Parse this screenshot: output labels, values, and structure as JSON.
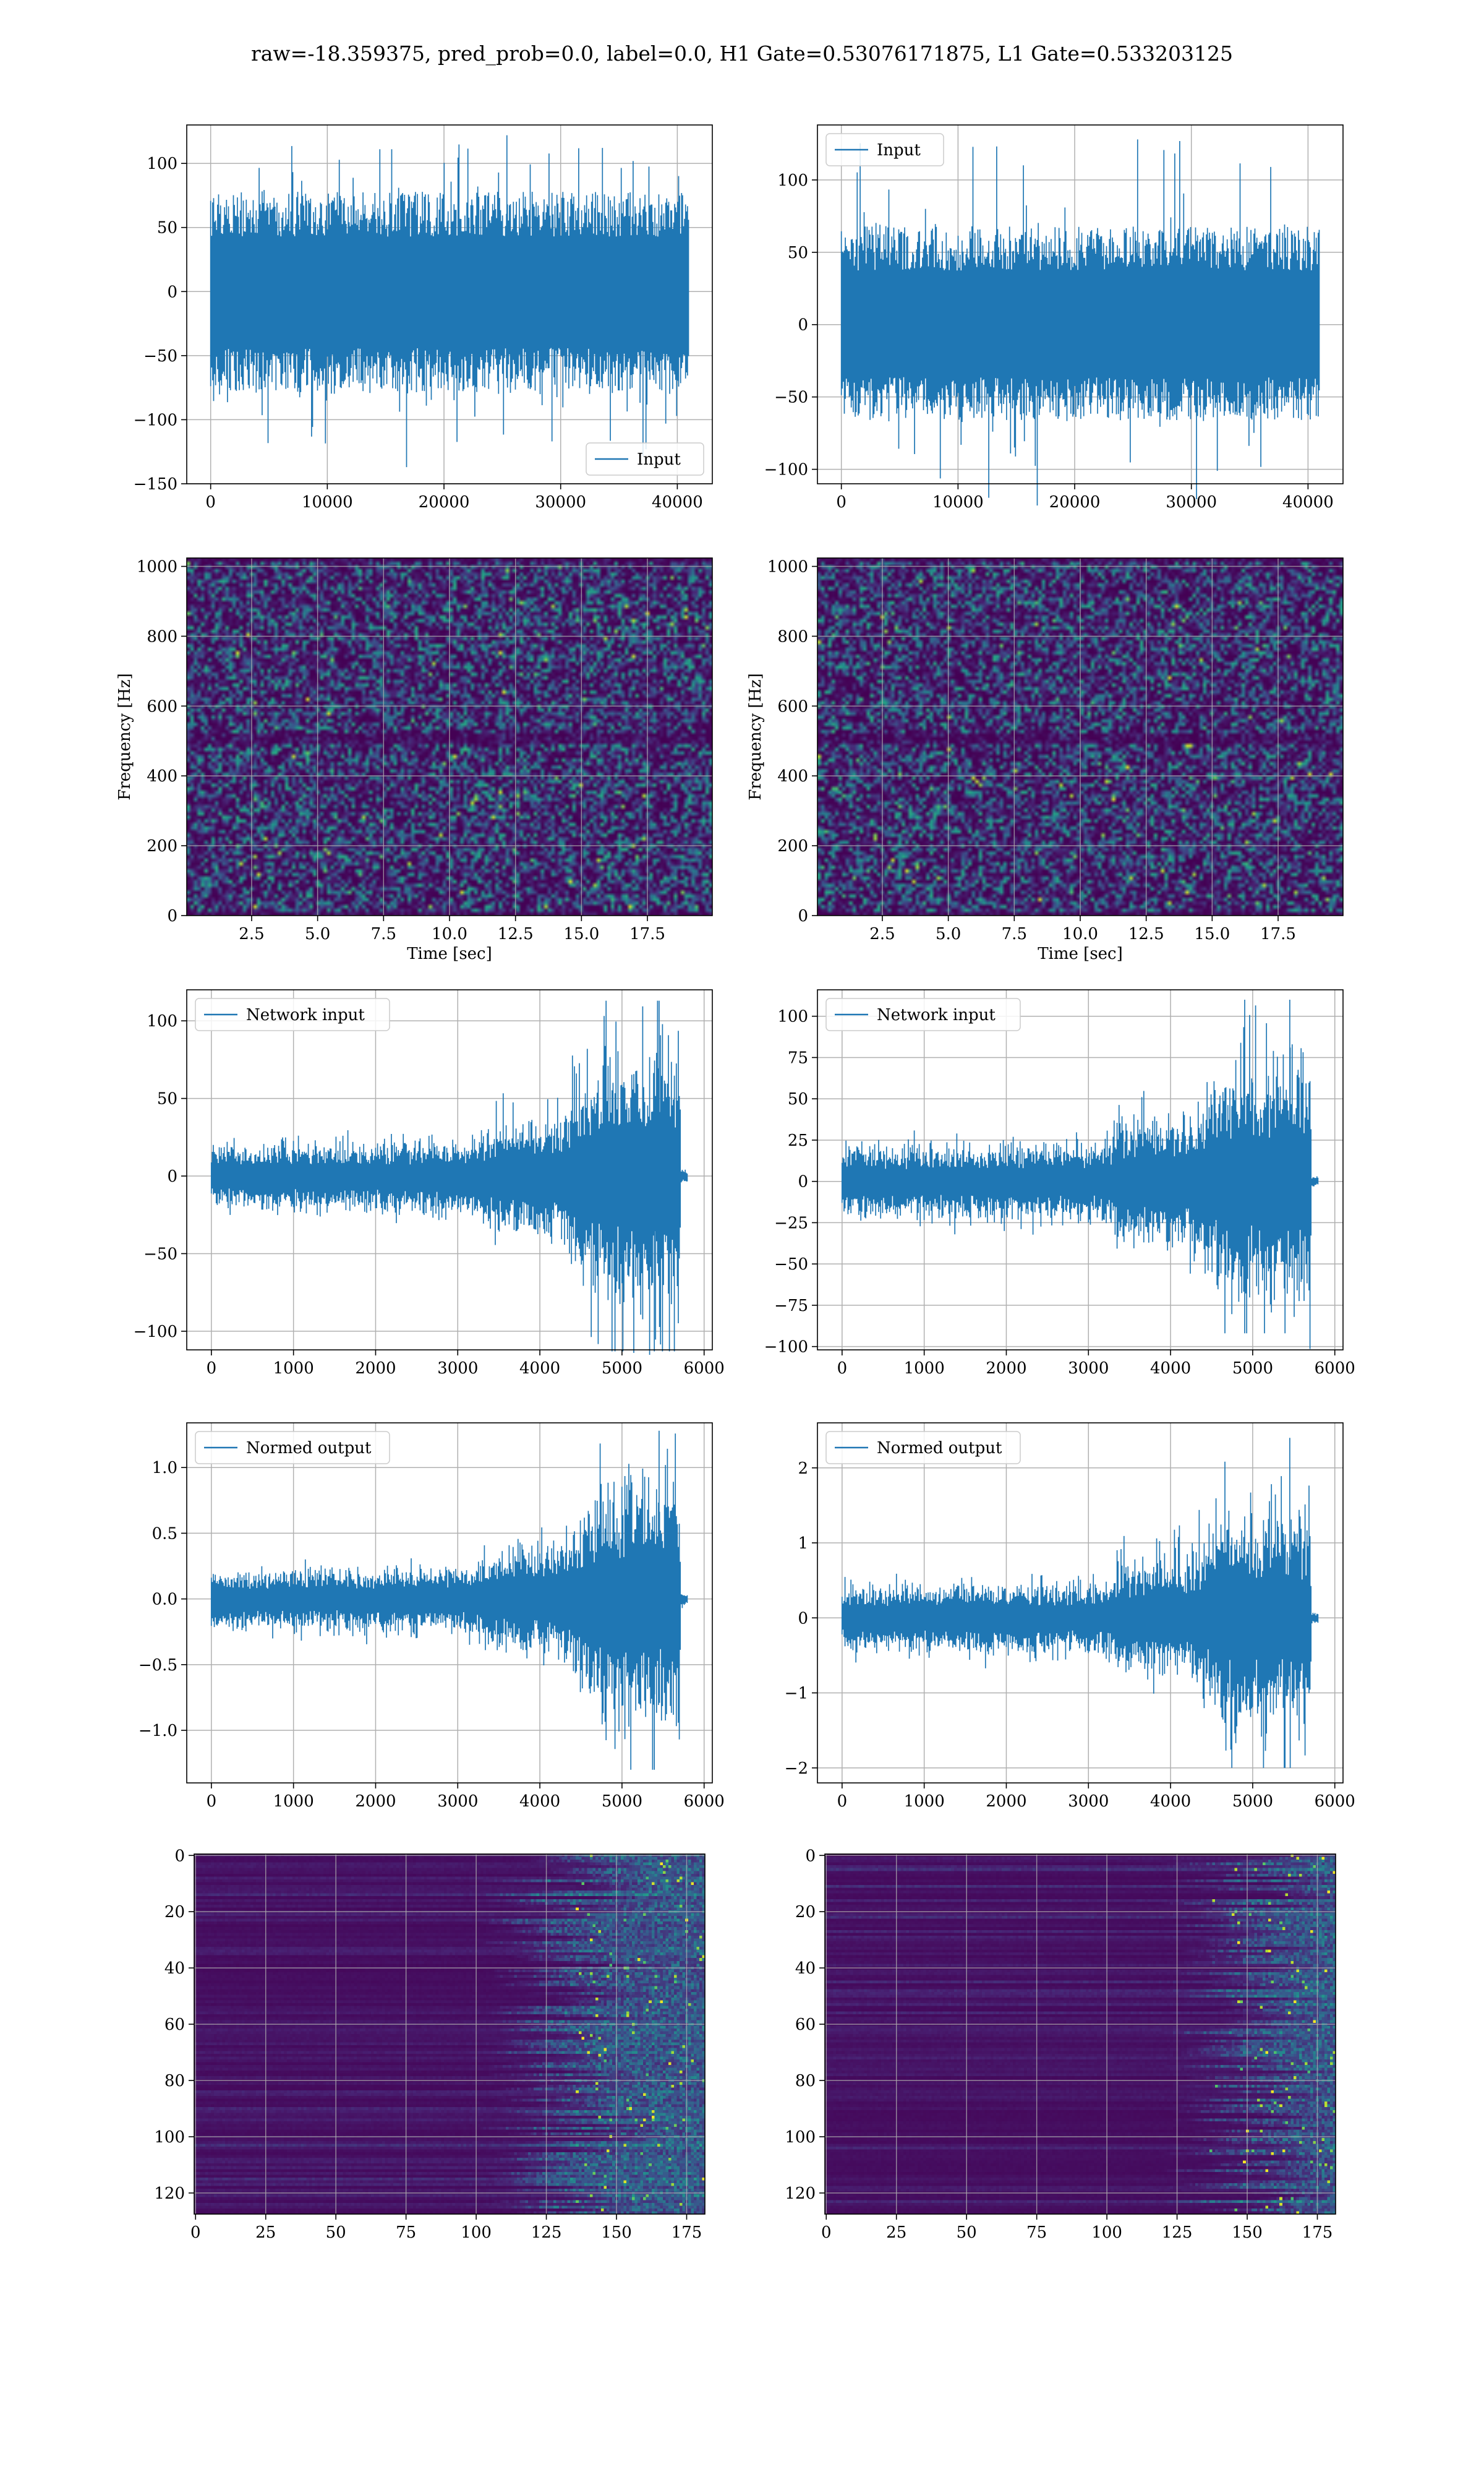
{
  "figure": {
    "suptitle": "raw=-18.359375, pred_prob=0.0, label=0.0, H1 Gate=0.53076171875, L1 Gate=0.533203125"
  },
  "colors": {
    "line": "#1f77b4",
    "grid": "#b0b0b0",
    "viridis_low": "#440154",
    "viridis_mid": "#31688e",
    "viridis_teal": "#21918c",
    "viridis_green": "#35b779",
    "viridis_high": "#fde725"
  },
  "chart_data": [
    {
      "id": "h1-input",
      "type": "line",
      "title": "",
      "xlabel": "",
      "ylabel": "",
      "legend": "lower-right",
      "series": [
        {
          "name": "Input",
          "description": "noise-like strain, amplitude mostly within ±70, spikes to ~120 / ~-135"
        }
      ],
      "xlim": [
        -2050,
        43000
      ],
      "ylim": [
        -150,
        130
      ],
      "xticks": [
        0,
        10000,
        20000,
        30000,
        40000
      ],
      "yticks": [
        -150,
        -100,
        -50,
        0,
        50,
        100
      ],
      "x_extent": [
        0,
        40960
      ],
      "envelope": [
        -80,
        78
      ],
      "spike_max": 122,
      "spike_min": -137,
      "grid": true
    },
    {
      "id": "l1-input",
      "type": "line",
      "title": "",
      "xlabel": "",
      "ylabel": "",
      "legend": "upper-left",
      "series": [
        {
          "name": "Input",
          "description": "noise-like strain, amplitude mostly within ±65, spikes to ~128 / ~-125"
        }
      ],
      "xlim": [
        -2050,
        43000
      ],
      "ylim": [
        -110,
        138
      ],
      "xticks": [
        0,
        10000,
        20000,
        30000,
        40000
      ],
      "yticks": [
        -100,
        -50,
        0,
        50,
        100
      ],
      "x_extent": [
        0,
        40960
      ],
      "envelope": [
        -66,
        68
      ],
      "spike_max": 128,
      "spike_min": -125,
      "grid": true
    },
    {
      "id": "h1-spectrogram",
      "type": "heatmap",
      "title": "",
      "xlabel": "Time [sec]",
      "ylabel": "Frequency [Hz]",
      "xlim": [
        0.04,
        19.96
      ],
      "ylim": [
        0,
        1024
      ],
      "xticks": [
        2.5,
        5.0,
        7.5,
        10.0,
        12.5,
        15.0,
        17.5
      ],
      "yticks": [
        0,
        200,
        400,
        600,
        800,
        1000
      ],
      "colormap": "viridis",
      "grid": true,
      "dark_band_hz": 512,
      "description": "speckled noise power, mostly dark purple with scattered teal/green spots"
    },
    {
      "id": "l1-spectrogram",
      "type": "heatmap",
      "title": "",
      "xlabel": "Time [sec]",
      "ylabel": "Frequency [Hz]",
      "xlim": [
        0.04,
        19.96
      ],
      "ylim": [
        0,
        1024
      ],
      "xticks": [
        2.5,
        5.0,
        7.5,
        10.0,
        12.5,
        15.0,
        17.5
      ],
      "yticks": [
        0,
        200,
        400,
        600,
        800,
        1000
      ],
      "colormap": "viridis",
      "grid": true,
      "dark_band_hz": 512,
      "description": "speckled noise power, mostly dark purple with scattered teal/green spots"
    },
    {
      "id": "h1-network-input",
      "type": "line",
      "title": "",
      "xlabel": "",
      "ylabel": "",
      "legend": "upper-left",
      "series": [
        {
          "name": "Network input"
        }
      ],
      "xlim": [
        -300,
        6100
      ],
      "ylim": [
        -112,
        120
      ],
      "xticks": [
        0,
        1000,
        2000,
        3000,
        4000,
        5000,
        6000
      ],
      "yticks": [
        -100,
        -50,
        0,
        50,
        100
      ],
      "x_extent": [
        0,
        5800
      ],
      "envelope_profile": [
        [
          0,
          14
        ],
        [
          3000,
          16
        ],
        [
          3300,
          18
        ],
        [
          3400,
          24
        ],
        [
          4200,
          28
        ],
        [
          4600,
          48
        ],
        [
          4800,
          58
        ],
        [
          5200,
          56
        ],
        [
          5700,
          62
        ],
        [
          5720,
          3
        ],
        [
          5800,
          2
        ]
      ],
      "neg_scale": 1.15,
      "spike_max": 113,
      "spike_min": -113,
      "grid": true
    },
    {
      "id": "l1-network-input",
      "type": "line",
      "title": "",
      "xlabel": "",
      "ylabel": "",
      "legend": "upper-left",
      "series": [
        {
          "name": "Network input"
        }
      ],
      "xlim": [
        -300,
        6100
      ],
      "ylim": [
        -102,
        116
      ],
      "xticks": [
        0,
        1000,
        2000,
        3000,
        4000,
        5000,
        6000
      ],
      "yticks": [
        -100,
        -75,
        -50,
        -25,
        0,
        25,
        50,
        75,
        100
      ],
      "x_extent": [
        0,
        5800
      ],
      "envelope_profile": [
        [
          0,
          16
        ],
        [
          3000,
          17
        ],
        [
          3300,
          20
        ],
        [
          3400,
          28
        ],
        [
          4200,
          30
        ],
        [
          4600,
          48
        ],
        [
          4800,
          56
        ],
        [
          5200,
          52
        ],
        [
          5700,
          58
        ],
        [
          5720,
          3
        ],
        [
          5800,
          2
        ]
      ],
      "neg_scale": 1.05,
      "spike_max": 110,
      "spike_min": -92,
      "grid": true
    },
    {
      "id": "h1-normed-output",
      "type": "line",
      "title": "",
      "xlabel": "",
      "ylabel": "",
      "legend": "upper-left",
      "series": [
        {
          "name": "Normed output"
        }
      ],
      "xlim": [
        -300,
        6100
      ],
      "ylim": [
        -1.4,
        1.34
      ],
      "xticks": [
        0,
        1000,
        2000,
        3000,
        4000,
        5000,
        6000
      ],
      "yticks": [
        -1.0,
        -0.5,
        0.0,
        0.5,
        1.0
      ],
      "x_extent": [
        0,
        5800
      ],
      "envelope_profile": [
        [
          0,
          0.16
        ],
        [
          3000,
          0.17
        ],
        [
          3300,
          0.2
        ],
        [
          3400,
          0.27
        ],
        [
          4200,
          0.3
        ],
        [
          4600,
          0.55
        ],
        [
          4800,
          0.65
        ],
        [
          5200,
          0.62
        ],
        [
          5700,
          0.7
        ],
        [
          5720,
          0.04
        ],
        [
          5800,
          0.03
        ]
      ],
      "neg_scale": 1.15,
      "spike_max": 1.28,
      "spike_min": -1.3,
      "grid": true
    },
    {
      "id": "l1-normed-output",
      "type": "line",
      "title": "",
      "xlabel": "",
      "ylabel": "",
      "legend": "upper-left",
      "series": [
        {
          "name": "Normed output"
        }
      ],
      "xlim": [
        -300,
        6100
      ],
      "ylim": [
        -2.2,
        2.6
      ],
      "xticks": [
        0,
        1000,
        2000,
        3000,
        4000,
        5000,
        6000
      ],
      "yticks": [
        -2,
        -1,
        0,
        1,
        2
      ],
      "x_extent": [
        0,
        5800
      ],
      "envelope_profile": [
        [
          0,
          0.32
        ],
        [
          3000,
          0.34
        ],
        [
          3300,
          0.4
        ],
        [
          3400,
          0.55
        ],
        [
          4200,
          0.58
        ],
        [
          4600,
          0.95
        ],
        [
          4800,
          1.1
        ],
        [
          5200,
          1.0
        ],
        [
          5700,
          1.1
        ],
        [
          5720,
          0.06
        ],
        [
          5800,
          0.05
        ]
      ],
      "neg_scale": 1.05,
      "spike_max": 2.4,
      "spike_min": -2.0,
      "grid": true
    },
    {
      "id": "h1-feature-map",
      "type": "heatmap",
      "title": "",
      "xlabel": "",
      "ylabel": "",
      "xlim": [
        -0.5,
        181.5
      ],
      "ylim": [
        127.5,
        -0.5
      ],
      "xticks": [
        0,
        25,
        50,
        75,
        100,
        125,
        150,
        175
      ],
      "yticks": [
        0,
        20,
        40,
        60,
        80,
        100,
        120
      ],
      "rows": 128,
      "cols": 182,
      "colormap": "viridis",
      "grid": true,
      "description": "horizontal-streak feature map, activity concentrated in columns ~110-181 with bright spots around 140-165"
    },
    {
      "id": "l1-feature-map",
      "type": "heatmap",
      "title": "",
      "xlabel": "",
      "ylabel": "",
      "xlim": [
        -0.5,
        181.5
      ],
      "ylim": [
        127.5,
        -0.5
      ],
      "xticks": [
        0,
        25,
        50,
        75,
        100,
        125,
        150,
        175
      ],
      "yticks": [
        0,
        20,
        40,
        60,
        80,
        100,
        120
      ],
      "rows": 128,
      "cols": 182,
      "colormap": "viridis",
      "grid": true,
      "description": "horizontal-streak feature map, activity concentrated in columns ~125-181 with bright spots around 140-180"
    }
  ]
}
